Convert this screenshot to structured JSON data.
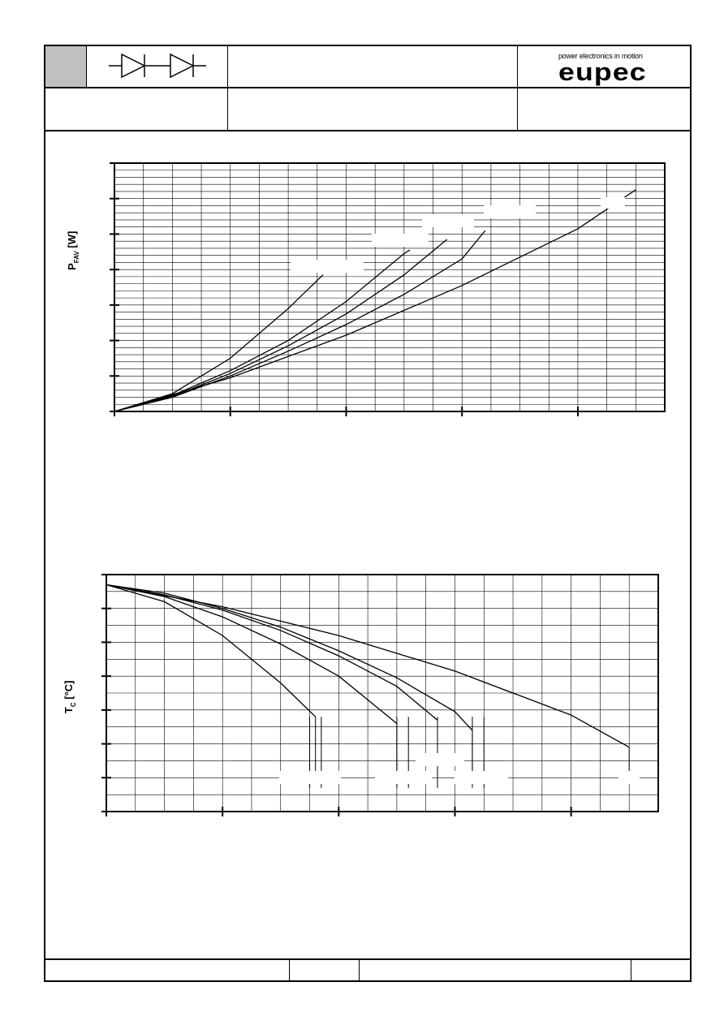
{
  "header": {
    "logo_tagline": "power electronics in motion",
    "logo_word": "eupec",
    "symbol_icon": "dual-diode-icon"
  },
  "chart_data": [
    {
      "type": "line",
      "ylabel_main": "P",
      "ylabel_sub": "FAV",
      "ylabel_unit": "[W]",
      "xlim": [
        0,
        4.75
      ],
      "ylim": [
        0,
        7
      ],
      "grid": true,
      "x_major_ticks": [
        0,
        1,
        2,
        3,
        4
      ],
      "y_major_ticks": [
        0,
        1,
        2,
        3,
        4,
        5,
        6,
        7
      ],
      "series": [
        {
          "x": [
            0,
            0.5,
            1.0,
            1.5,
            1.8
          ],
          "y": [
            0,
            0.5,
            1.5,
            2.9,
            3.85
          ]
        },
        {
          "x": [
            0,
            0.5,
            1.0,
            1.5,
            2.0,
            2.5,
            2.55
          ],
          "y": [
            0,
            0.45,
            1.15,
            2.0,
            3.1,
            4.45,
            4.55
          ]
        },
        {
          "x": [
            0,
            0.5,
            1.0,
            1.5,
            2.0,
            2.5,
            2.87
          ],
          "y": [
            0,
            0.42,
            1.07,
            1.85,
            2.75,
            3.85,
            4.85
          ]
        },
        {
          "x": [
            0,
            0.5,
            1.0,
            1.5,
            2.0,
            2.5,
            3.0,
            3.2
          ],
          "y": [
            0,
            0.4,
            1.0,
            1.7,
            2.45,
            3.3,
            4.3,
            5.1
          ]
        },
        {
          "x": [
            0,
            1.0,
            2.0,
            3.0,
            4.0,
            4.5
          ],
          "y": [
            0,
            0.95,
            2.15,
            3.55,
            5.15,
            6.25
          ]
        }
      ]
    },
    {
      "type": "line",
      "ylabel_main": "T",
      "ylabel_sub": "C",
      "ylabel_unit": "[°C]",
      "xlim": [
        0,
        4.75
      ],
      "ylim": [
        0,
        7
      ],
      "grid": true,
      "x_major_ticks": [
        0,
        1,
        2,
        3,
        4
      ],
      "y_major_ticks": [
        0,
        1,
        2,
        3,
        4,
        5,
        6,
        7
      ],
      "series": [
        {
          "x": [
            0,
            0.5,
            1.0,
            1.5,
            1.8
          ],
          "y": [
            6.7,
            6.2,
            5.2,
            3.8,
            2.8
          ]
        },
        {
          "x": [
            0,
            0.5,
            1.0,
            1.5,
            2.0,
            2.5
          ],
          "y": [
            6.7,
            6.35,
            5.75,
            4.95,
            4.0,
            2.6
          ]
        },
        {
          "x": [
            0,
            0.5,
            1.0,
            1.5,
            2.0,
            2.5,
            2.85
          ],
          "y": [
            6.7,
            6.4,
            5.95,
            5.35,
            4.6,
            3.7,
            2.7
          ]
        },
        {
          "x": [
            0,
            0.5,
            1.0,
            1.5,
            2.0,
            2.5,
            3.0,
            3.15
          ],
          "y": [
            6.7,
            6.45,
            6.0,
            5.45,
            4.75,
            3.95,
            2.95,
            2.4
          ]
        },
        {
          "x": [
            0,
            1.0,
            2.0,
            3.0,
            4.0,
            4.5
          ],
          "y": [
            6.7,
            6.05,
            5.2,
            4.15,
            2.85,
            1.9
          ]
        }
      ],
      "drop_lines_x": [
        1.75,
        1.85,
        2.5,
        2.6,
        2.85,
        3.15,
        3.25
      ]
    }
  ]
}
